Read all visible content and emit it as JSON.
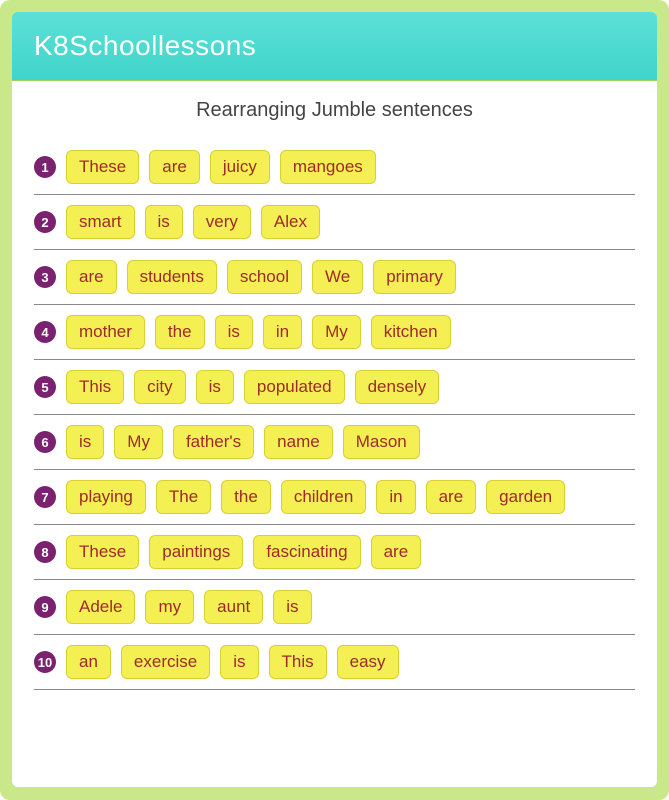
{
  "header": {
    "title": "K8Schoollessons"
  },
  "worksheet": {
    "title": "Rearranging Jumble sentences",
    "colors": {
      "outer_bg": "#c8e88a",
      "header_bg": "#4ddbd1",
      "inner_bg": "#ffffff",
      "word_bg": "#f4ef53",
      "word_border": "#d8d030",
      "word_text": "#9e2a2a",
      "num_bg": "#7a2270",
      "num_text": "#ffffff",
      "divider": "#888888"
    },
    "rows": [
      {
        "n": "1",
        "words": [
          "These",
          "are",
          "juicy",
          "mangoes"
        ]
      },
      {
        "n": "2",
        "words": [
          "smart",
          "is",
          "very",
          "Alex"
        ]
      },
      {
        "n": "3",
        "words": [
          "are",
          "students",
          "school",
          "We",
          "primary"
        ]
      },
      {
        "n": "4",
        "words": [
          "mother",
          "the",
          "is",
          "in",
          "My",
          "kitchen"
        ]
      },
      {
        "n": "5",
        "words": [
          "This",
          "city",
          "is",
          "populated",
          "densely"
        ]
      },
      {
        "n": "6",
        "words": [
          "is",
          "My",
          "father's",
          "name",
          "Mason"
        ]
      },
      {
        "n": "7",
        "words": [
          "playing",
          "The",
          "the",
          "children",
          "in",
          "are",
          "garden"
        ]
      },
      {
        "n": "8",
        "words": [
          "These",
          "paintings",
          "fascinating",
          "are"
        ]
      },
      {
        "n": "9",
        "words": [
          "Adele",
          "my",
          "aunt",
          "is"
        ]
      },
      {
        "n": "10",
        "words": [
          "an",
          "exercise",
          "is",
          "This",
          "easy"
        ]
      }
    ]
  }
}
